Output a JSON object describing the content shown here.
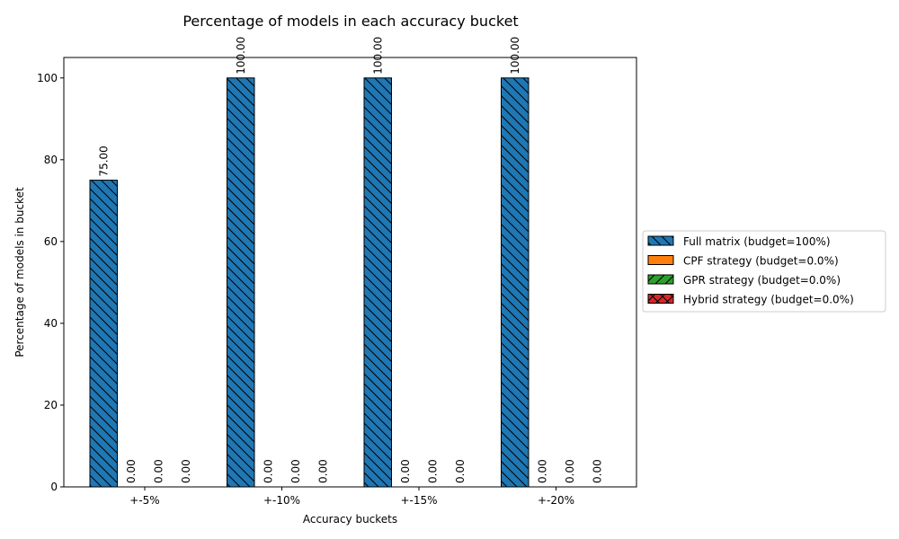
{
  "chart_data": {
    "type": "bar",
    "title": "Percentage of models in each accuracy bucket",
    "xlabel": "Accuracy buckets",
    "ylabel": "Percentage of models in bucket",
    "categories": [
      "+-5%",
      "+-10%",
      "+-15%",
      "+-20%"
    ],
    "ylim": [
      0,
      105
    ],
    "yticks": [
      0,
      20,
      40,
      60,
      80,
      100
    ],
    "grid": false,
    "legend_position": "right",
    "value_label_format": "2 decimals, rotated",
    "series": [
      {
        "name": "Full matrix (budget=100%)",
        "values": [
          75,
          100,
          100,
          100
        ],
        "color": "#1f77b4",
        "hatch": "backslash"
      },
      {
        "name": "CPF strategy (budget=0.0%)",
        "values": [
          0,
          0,
          0,
          0
        ],
        "color": "#ff7f0e",
        "hatch": "none"
      },
      {
        "name": "GPR strategy (budget=0.0%)",
        "values": [
          0,
          0,
          0,
          0
        ],
        "color": "#2ca02c",
        "hatch": "slash"
      },
      {
        "name": "Hybrid strategy (budget=0.0%)",
        "values": [
          0,
          0,
          0,
          0
        ],
        "color": "#d62728",
        "hatch": "cross"
      }
    ]
  }
}
